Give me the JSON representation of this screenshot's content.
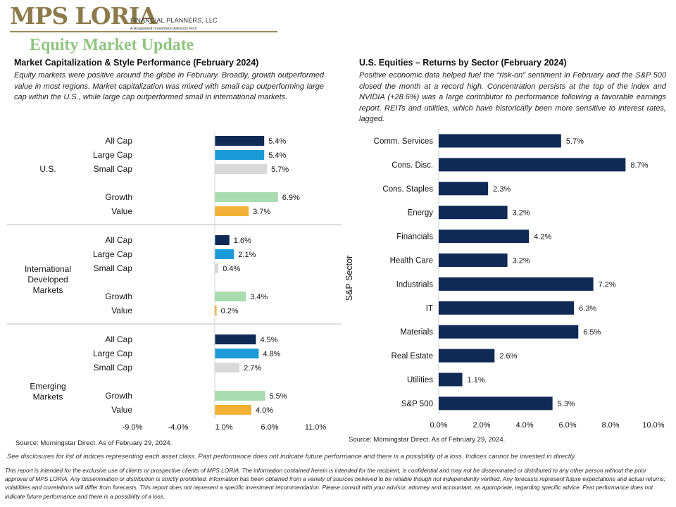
{
  "brand": {
    "name": "MPS LORIA",
    "tagline": "FINANCIAL PLANNERS, LLC",
    "subtitle": "A Registered Investment Advisory Firm"
  },
  "page_title": "Equity Market Update",
  "left": {
    "title": "Market Capitalization & Style Performance (February 2024)",
    "description": "Equity markets were positive around the globe in February. Broadly, growth outperformed value in most regions. Market capitalization was mixed with small cap outperforming large cap within the U.S., while large cap outperformed small in international markets.",
    "source": "Source: Morningstar Direct. As of February 29, 2024."
  },
  "right": {
    "title": "U.S. Equities – Returns by Sector (February 2024)",
    "description": "Positive economic data helped fuel the “risk-on” sentiment in February and the S&P 500 closed the month at a record high. Concentration persists at the top of the index and NVIDIA (+28.6%) was a large contributor to performance following a favorable earnings report. REITs and utilities, which have historically been more sensitive to interest rates, lagged.",
    "source": "Source: Morningstar Direct. As of February 29, 2024."
  },
  "disclosure": "See disclosures for list of indices representing each asset class. Past performance does not indicate future performance and there is a possibility of a loss. Indices cannot be invested in directly.",
  "fine_print": "This report is intended for the exclusive use of clients or prospective clients of MPS LORIA. The information contained herein is intended for the recipient, is confidential and may not be disseminated or distributed to any other person without the prior approval of MPS LORIA. Any dissemination or distribution is strictly prohibited. Information has been obtained from a variety of sources believed to be reliable though not independently verified. Any forecasts represent future expectations and actual returns; volatilities and correlations will differ from forecasts. This report does not represent a specific investment recommendation. Please consult with your advisor, attorney and accountant, as appropriate, regarding specific advice. Past performance does not indicate future performance and there is a possibility of a loss.",
  "chart_data": [
    {
      "type": "bar",
      "orientation": "horizontal",
      "title": "Market Capitalization & Style Performance (February 2024)",
      "xlim": [
        -9.0,
        11.0
      ],
      "x_ticks": [
        "-9.0%",
        "-4.0%",
        "1.0%",
        "6.0%",
        "11.0%"
      ],
      "colors": {
        "All Cap": "#0f2a57",
        "Large Cap": "#1a9ad6",
        "Small Cap": "#d9d9d9",
        "Growth": "#a8dcb0",
        "Value": "#f2b134"
      },
      "groups": [
        {
          "name": "U.S.",
          "bars": [
            {
              "category": "All Cap",
              "value": 5.4,
              "label": "5.4%"
            },
            {
              "category": "Large Cap",
              "value": 5.4,
              "label": "5.4%"
            },
            {
              "category": "Small Cap",
              "value": 5.7,
              "label": "5.7%"
            },
            {
              "category": "Growth",
              "value": 6.9,
              "label": "6.9%"
            },
            {
              "category": "Value",
              "value": 3.7,
              "label": "3.7%"
            }
          ]
        },
        {
          "name": "International Developed Markets",
          "bars": [
            {
              "category": "All Cap",
              "value": 1.6,
              "label": "1.6%"
            },
            {
              "category": "Large Cap",
              "value": 2.1,
              "label": "2.1%"
            },
            {
              "category": "Small Cap",
              "value": 0.4,
              "label": "0.4%"
            },
            {
              "category": "Growth",
              "value": 3.4,
              "label": "3.4%"
            },
            {
              "category": "Value",
              "value": 0.2,
              "label": "0.2%"
            }
          ]
        },
        {
          "name": "Emerging Markets",
          "bars": [
            {
              "category": "All Cap",
              "value": 4.5,
              "label": "4.5%"
            },
            {
              "category": "Large Cap",
              "value": 4.8,
              "label": "4.8%"
            },
            {
              "category": "Small Cap",
              "value": 2.7,
              "label": "2.7%"
            },
            {
              "category": "Growth",
              "value": 5.5,
              "label": "5.5%"
            },
            {
              "category": "Value",
              "value": 4.0,
              "label": "4.0%"
            }
          ]
        }
      ]
    },
    {
      "type": "bar",
      "orientation": "horizontal",
      "title": "U.S. Equities – Returns by Sector (February 2024)",
      "ylabel": "S&P Sector",
      "xlim": [
        0.0,
        10.0
      ],
      "x_ticks": [
        "0.0%",
        "2.0%",
        "4.0%",
        "6.0%",
        "8.0%",
        "10.0%"
      ],
      "color": "#0f2a57",
      "categories": [
        "Comm. Services",
        "Cons. Disc.",
        "Cons. Staples",
        "Energy",
        "Financials",
        "Health Care",
        "Industrials",
        "IT",
        "Materials",
        "Real Estate",
        "Utilities",
        "S&P 500"
      ],
      "values": [
        5.7,
        8.7,
        2.3,
        3.2,
        4.2,
        3.2,
        7.2,
        6.3,
        6.5,
        2.6,
        1.1,
        5.3
      ],
      "labels": [
        "5.7%",
        "8.7%",
        "2.3%",
        "3.2%",
        "4.2%",
        "3.2%",
        "7.2%",
        "6.3%",
        "6.5%",
        "2.6%",
        "1.1%",
        "5.3%"
      ]
    }
  ]
}
